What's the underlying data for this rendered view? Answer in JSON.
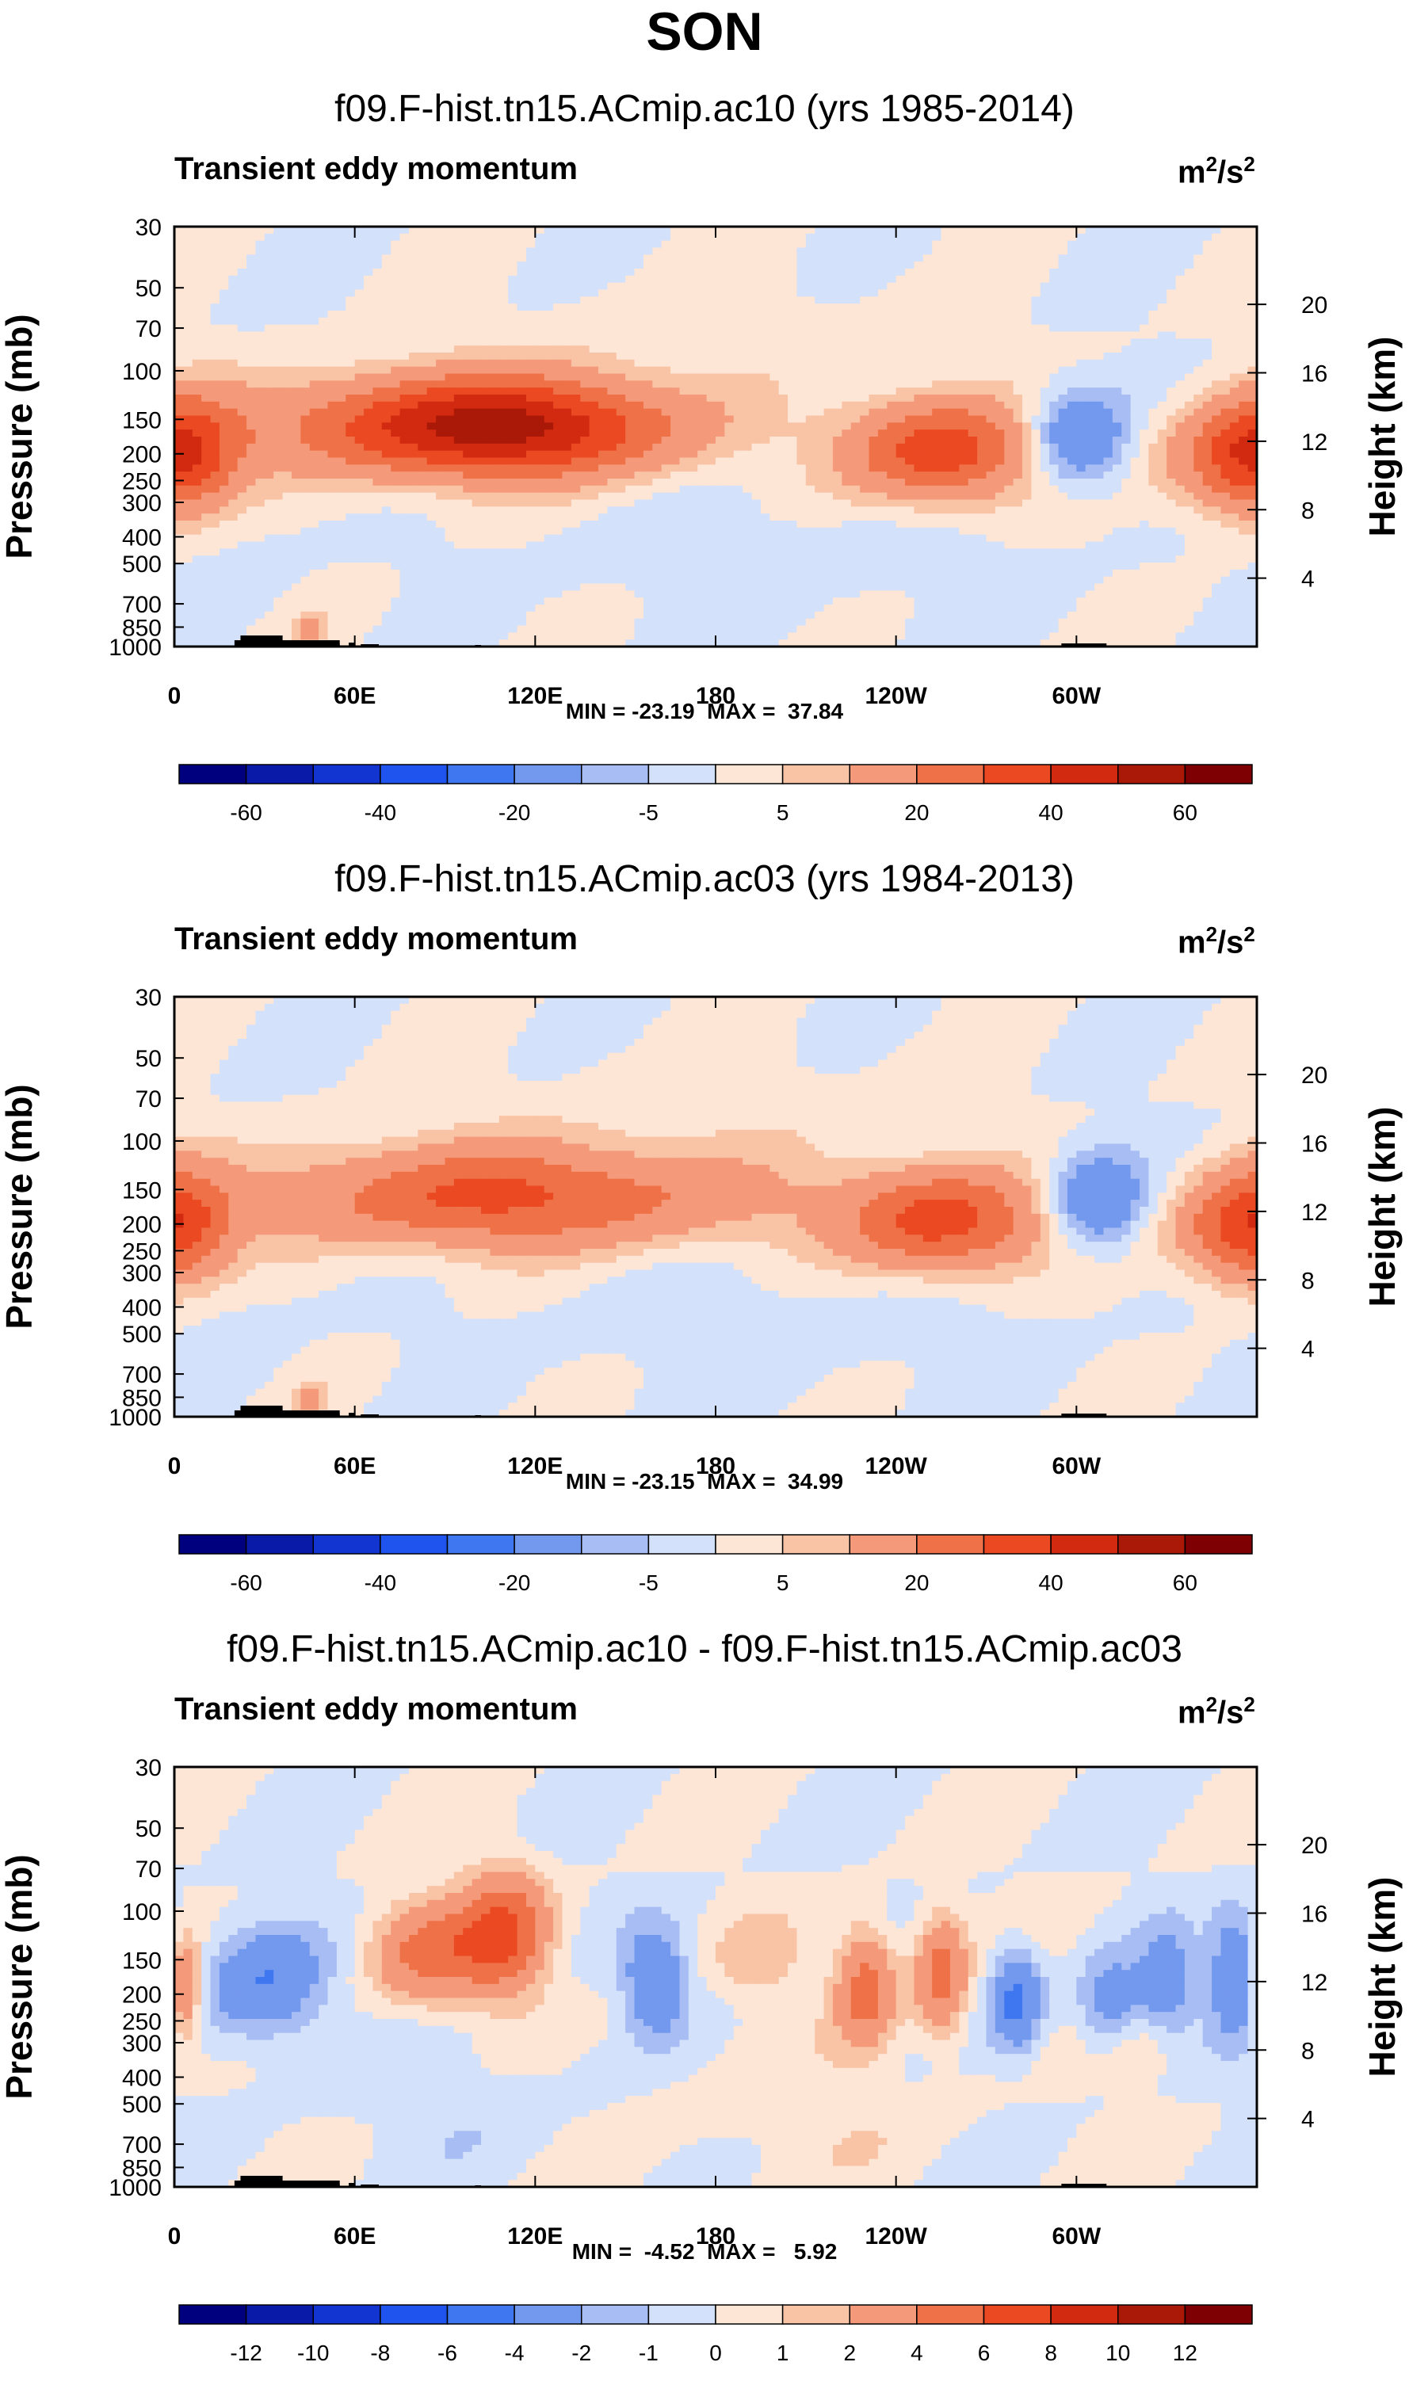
{
  "page": {
    "title": "SON"
  },
  "chart_data": [
    {
      "type": "heatmap",
      "title": "f09.F-hist.tn15.ACmip.ac10 (yrs 1985-2014)",
      "variable": "Transient eddy momentum",
      "units": "m²/s²",
      "unit_base": "m",
      "unit_exp": "2",
      "unit_tail": "/s",
      "unit_exp2": "2",
      "ylabel": "Pressure (mb)",
      "ylabel_right": "Height (km)",
      "x_ticks": [
        "0",
        "60E",
        "120E",
        "180",
        "120W",
        "60W"
      ],
      "x_tick_lon": [
        0,
        60,
        120,
        180,
        240,
        300
      ],
      "xlim": [
        0,
        360
      ],
      "y_ticks": [
        "30",
        "50",
        "70",
        "100",
        "150",
        "200",
        "250",
        "300",
        "400",
        "500",
        "700",
        "850",
        "1000"
      ],
      "y_tick_p": [
        30,
        50,
        70,
        100,
        150,
        200,
        250,
        300,
        400,
        500,
        700,
        850,
        1000
      ],
      "ylim": [
        1000,
        30
      ],
      "height_ticks": [
        "4",
        "8",
        "12",
        "16",
        "20"
      ],
      "height_km": [
        4,
        8,
        12,
        16,
        20
      ],
      "min_label": "MIN = -23.19",
      "max_label": "MAX =  37.84",
      "colorbar_labels": [
        "-60",
        "-40",
        "-20",
        "-5",
        "5",
        "20",
        "40",
        "60"
      ],
      "features": [
        {
          "lon": 3,
          "p": 200,
          "dlon": 14,
          "dp": 0.35,
          "amp": 28
        },
        {
          "lon": 90,
          "p": 160,
          "dlon": 45,
          "dp": 0.3,
          "amp": 34
        },
        {
          "lon": 120,
          "p": 160,
          "dlon": 35,
          "dp": 0.28,
          "amp": 26
        },
        {
          "lon": 255,
          "p": 195,
          "dlon": 22,
          "dp": 0.3,
          "amp": 37
        },
        {
          "lon": 300,
          "p": 175,
          "dlon": 12,
          "dp": 0.28,
          "amp": -23
        },
        {
          "lon": 352,
          "p": 210,
          "dlon": 18,
          "dp": 0.3,
          "amp": 18
        },
        {
          "lon": 45,
          "p": 870,
          "dlon": 4,
          "dp": 0.1,
          "amp": 12
        },
        {
          "lon": 200,
          "p": 450,
          "dlon": 60,
          "dp": 0.4,
          "amp": -3
        },
        {
          "lon": 20,
          "p": 300,
          "dlon": 15,
          "dp": 0.6,
          "amp": -3
        },
        {
          "lon": 180,
          "p": 70,
          "dlon": 50,
          "dp": 0.3,
          "amp": 3
        }
      ]
    },
    {
      "type": "heatmap",
      "title": "f09.F-hist.tn15.ACmip.ac03 (yrs 1984-2013)",
      "variable": "Transient eddy momentum",
      "units": "m²/s²",
      "unit_base": "m",
      "unit_exp": "2",
      "unit_tail": "/s",
      "unit_exp2": "2",
      "ylabel": "Pressure (mb)",
      "ylabel_right": "Height (km)",
      "x_ticks": [
        "0",
        "60E",
        "120E",
        "180",
        "120W",
        "60W"
      ],
      "x_tick_lon": [
        0,
        60,
        120,
        180,
        240,
        300
      ],
      "xlim": [
        0,
        360
      ],
      "y_ticks": [
        "30",
        "50",
        "70",
        "100",
        "150",
        "200",
        "250",
        "300",
        "400",
        "500",
        "700",
        "850",
        "1000"
      ],
      "y_tick_p": [
        30,
        50,
        70,
        100,
        150,
        200,
        250,
        300,
        400,
        500,
        700,
        850,
        1000
      ],
      "ylim": [
        1000,
        30
      ],
      "height_ticks": [
        "4",
        "8",
        "12",
        "16",
        "20"
      ],
      "height_km": [
        4,
        8,
        12,
        16,
        20
      ],
      "min_label": "MIN = -23.15",
      "max_label": "MAX =  34.99",
      "colorbar_labels": [
        "-60",
        "-40",
        "-20",
        "-5",
        "5",
        "20",
        "40",
        "60"
      ],
      "features": [
        {
          "lon": 0,
          "p": 200,
          "dlon": 12,
          "dp": 0.35,
          "amp": 22
        },
        {
          "lon": 110,
          "p": 160,
          "dlon": 55,
          "dp": 0.3,
          "amp": 32
        },
        {
          "lon": 255,
          "p": 195,
          "dlon": 24,
          "dp": 0.3,
          "amp": 35
        },
        {
          "lon": 307,
          "p": 165,
          "dlon": 12,
          "dp": 0.28,
          "amp": -23
        },
        {
          "lon": 355,
          "p": 210,
          "dlon": 20,
          "dp": 0.3,
          "amp": 18
        },
        {
          "lon": 45,
          "p": 870,
          "dlon": 4,
          "dp": 0.1,
          "amp": 12
        },
        {
          "lon": 200,
          "p": 450,
          "dlon": 60,
          "dp": 0.4,
          "amp": -3
        },
        {
          "lon": 20,
          "p": 300,
          "dlon": 15,
          "dp": 0.6,
          "amp": -3
        },
        {
          "lon": 180,
          "p": 70,
          "dlon": 50,
          "dp": 0.3,
          "amp": 3
        }
      ]
    },
    {
      "type": "heatmap",
      "title": "f09.F-hist.tn15.ACmip.ac10 - f09.F-hist.tn15.ACmip.ac03",
      "variable": "Transient eddy momentum",
      "units": "m²/s²",
      "unit_base": "m",
      "unit_exp": "2",
      "unit_tail": "/s",
      "unit_exp2": "2",
      "ylabel": "Pressure (mb)",
      "ylabel_right": "Height (km)",
      "x_ticks": [
        "0",
        "60E",
        "120E",
        "180",
        "120W",
        "60W"
      ],
      "x_tick_lon": [
        0,
        60,
        120,
        180,
        240,
        300
      ],
      "xlim": [
        0,
        360
      ],
      "y_ticks": [
        "30",
        "50",
        "70",
        "100",
        "150",
        "200",
        "250",
        "300",
        "400",
        "500",
        "700",
        "850",
        "1000"
      ],
      "y_tick_p": [
        30,
        50,
        70,
        100,
        150,
        200,
        250,
        300,
        400,
        500,
        700,
        850,
        1000
      ],
      "ylim": [
        1000,
        30
      ],
      "height_ticks": [
        "4",
        "8",
        "12",
        "16",
        "20"
      ],
      "height_km": [
        4,
        8,
        12,
        16,
        20
      ],
      "min_label": "MIN =  -4.52",
      "max_label": "MAX =   5.92",
      "colorbar_labels": [
        "-12",
        "-10",
        "-8",
        "-6",
        "-4",
        "-2",
        "-1",
        "0",
        "1",
        "2",
        "4",
        "6",
        "8",
        "10",
        "12"
      ],
      "features": [
        {
          "lon": 3,
          "p": 190,
          "dlon": 4,
          "dp": 0.3,
          "amp": 5
        },
        {
          "lon": 30,
          "p": 180,
          "dlon": 14,
          "dp": 0.35,
          "amp": -4
        },
        {
          "lon": 85,
          "p": 140,
          "dlon": 14,
          "dp": 0.3,
          "amp": 5
        },
        {
          "lon": 110,
          "p": 120,
          "dlon": 10,
          "dp": 0.35,
          "amp": 5.9
        },
        {
          "lon": 160,
          "p": 180,
          "dlon": 7,
          "dp": 0.3,
          "amp": -4
        },
        {
          "lon": 195,
          "p": 150,
          "dlon": 10,
          "dp": 0.25,
          "amp": 1.5
        },
        {
          "lon": 230,
          "p": 190,
          "dlon": 7,
          "dp": 0.35,
          "amp": 5
        },
        {
          "lon": 255,
          "p": 170,
          "dlon": 6,
          "dp": 0.35,
          "amp": 5
        },
        {
          "lon": 280,
          "p": 210,
          "dlon": 6,
          "dp": 0.3,
          "amp": -4.5
        },
        {
          "lon": 312,
          "p": 220,
          "dlon": 8,
          "dp": 0.3,
          "amp": -3
        },
        {
          "lon": 330,
          "p": 180,
          "dlon": 6,
          "dp": 0.3,
          "amp": -3
        },
        {
          "lon": 353,
          "p": 170,
          "dlon": 6,
          "dp": 0.35,
          "amp": -4
        },
        {
          "lon": 320,
          "p": 320,
          "dlon": 8,
          "dp": 0.2,
          "amp": 1.5
        },
        {
          "lon": 200,
          "p": 550,
          "dlon": 40,
          "dp": 0.4,
          "amp": 0.7
        },
        {
          "lon": 100,
          "p": 500,
          "dlon": 40,
          "dp": 0.4,
          "amp": -0.6
        }
      ]
    }
  ],
  "colors": {
    "blue": [
      "#00007f",
      "#0a1aa8",
      "#1235d2",
      "#1f55ee",
      "#3f77f0",
      "#7399ee",
      "#a7bdf3",
      "#d3e1fb"
    ],
    "red": [
      "#fde6d5",
      "#f9c3a6",
      "#f49a7a",
      "#ef7148",
      "#ea4922",
      "#d12a10",
      "#aa1808",
      "#7e0002"
    ],
    "terrain": "#000000"
  }
}
